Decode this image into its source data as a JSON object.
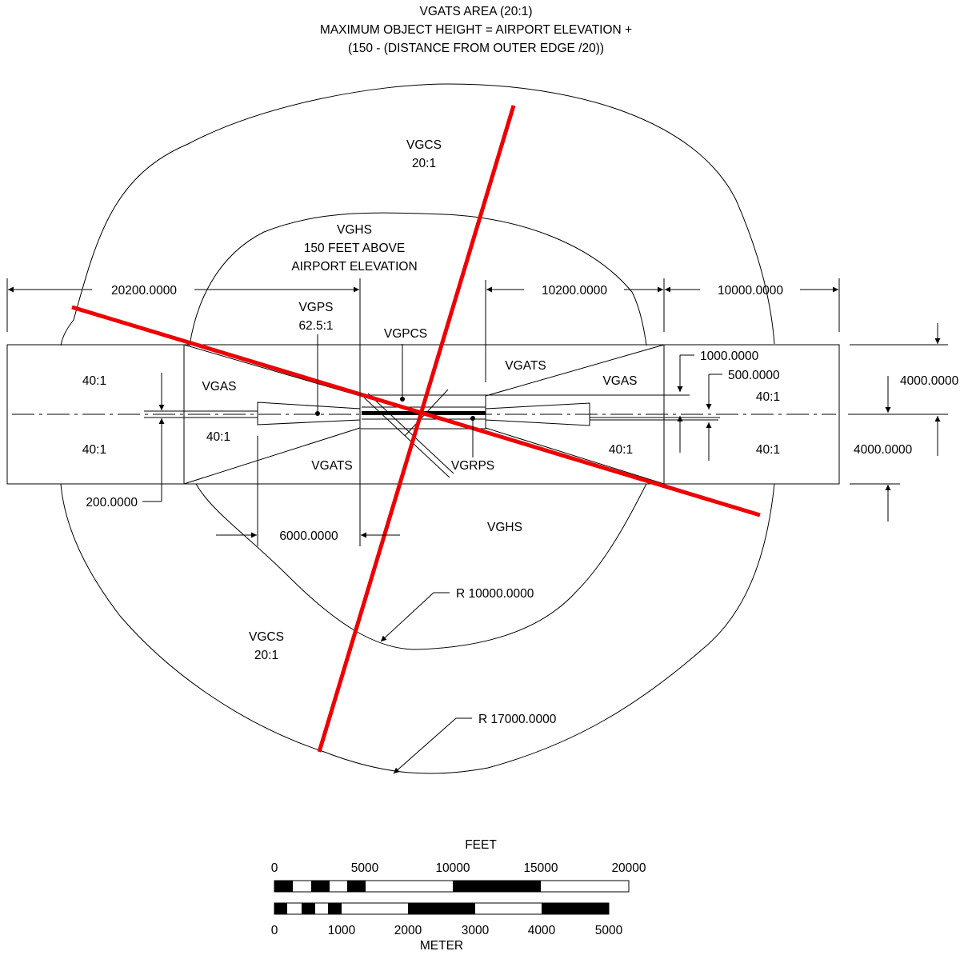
{
  "title": {
    "line1": "VGATS AREA (20:1)",
    "line2": "MAXIMUM OBJECT HEIGHT = AIRPORT ELEVATION +",
    "line3": "(150 - (DISTANCE FROM OUTER EDGE /20))"
  },
  "labels": {
    "vgcs_top": "VGCS",
    "vgcs_top_ratio": "20:1",
    "vghs_top_1": "VGHS",
    "vghs_top_2": "150 FEET ABOVE",
    "vghs_top_3": "AIRPORT ELEVATION",
    "vgps": "VGPS",
    "vgps_ratio": "62.5:1",
    "vgpcs": "VGPCS",
    "vgats_upper": "VGATS",
    "vgas_left": "VGAS",
    "vgas_right": "VGAS",
    "ratio_far_left_upper": "40:1",
    "ratio_far_left_lower": "40:1",
    "ratio_left_lower": "40:1",
    "ratio_right_lower": "40:1",
    "ratio_far_right_upper": "40:1",
    "ratio_far_right_lower": "40:1",
    "vgats_lower": "VGATS",
    "vgrps": "VGRPS",
    "vghs_bottom": "VGHS",
    "vgcs_bottom": "VGCS",
    "vgcs_bottom_ratio": "20:1"
  },
  "dimensions": {
    "left_length": "20200.0000",
    "right_inner_length": "10200.0000",
    "right_outer_length": "10000.0000",
    "width_1000": "1000.0000",
    "width_500": "500.0000",
    "half_width_upper": "4000.0000",
    "half_width_lower": "4000.0000",
    "offset_200": "200.0000",
    "vgps_length": "6000.0000",
    "radius_inner": "R 10000.0000",
    "radius_outer": "R 17000.0000"
  },
  "scale_bar": {
    "feet_title": "FEET",
    "feet_ticks": [
      "0",
      "5000",
      "10000",
      "15000",
      "20000"
    ],
    "meter_ticks": [
      "0",
      "1000",
      "2000",
      "3000",
      "4000",
      "5000"
    ],
    "meter_title": "METER"
  },
  "colors": {
    "runway_lines": "#ee0000",
    "linework": "#000000"
  }
}
